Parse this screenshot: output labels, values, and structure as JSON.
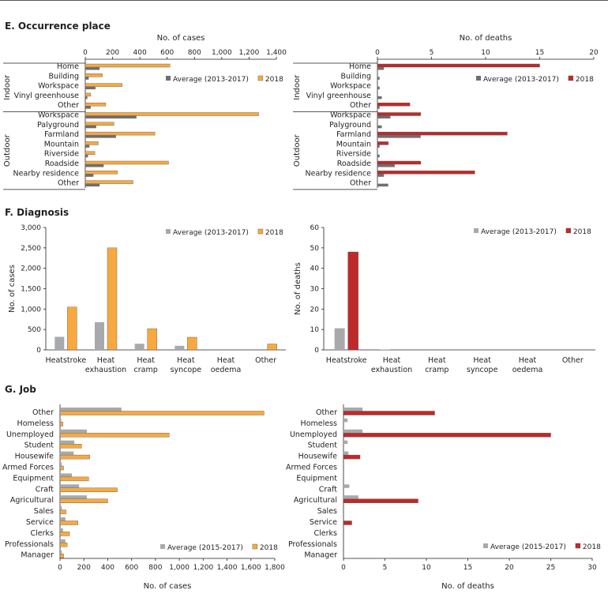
{
  "sections": {
    "occurrence": "E. Occurrence place",
    "diagnosis": "F. Diagnosis",
    "job": "G. Job"
  },
  "colors": {
    "avg_occ": "#6d6e70",
    "avg_light": "#a7a9ac",
    "cases2018": "#f7a940",
    "deaths2018": "#be2a2a",
    "bar_edge": "#555555"
  },
  "chart_data": [
    {
      "id": "occ_cases",
      "type": "bar",
      "orientation": "horizontal",
      "title": "No. of cases",
      "groups": [
        {
          "name": "Indoor",
          "categories": [
            "Home",
            "Building",
            "Workspace",
            "Vinyl greenhouse",
            "Other"
          ]
        },
        {
          "name": "Outdoor",
          "categories": [
            "Workspace",
            "Palyground",
            "Farmland",
            "Mountain",
            "Riverside",
            "Roadside",
            "Nearby residence",
            "Other"
          ]
        }
      ],
      "series": [
        {
          "name": "Average (2013-2017)",
          "values": [
            105,
            25,
            75,
            15,
            40,
            375,
            80,
            225,
            30,
            20,
            135,
            60,
            105
          ]
        },
        {
          "name": "2018",
          "values": [
            620,
            125,
            270,
            40,
            150,
            1270,
            210,
            510,
            95,
            70,
            610,
            235,
            350
          ]
        }
      ],
      "xlim": [
        0,
        1400
      ],
      "ticks": [
        "0",
        "200",
        "400",
        "600",
        "800",
        "1,000",
        "1,200",
        "1,400"
      ]
    },
    {
      "id": "occ_deaths",
      "type": "bar",
      "orientation": "horizontal",
      "title": "No. of deaths",
      "groups": [
        {
          "name": "Indoor",
          "categories": [
            "Home",
            "Building",
            "Workspace",
            "Vinyl greenhouse",
            "Other"
          ]
        },
        {
          "name": "Outdoor",
          "categories": [
            "Workspace",
            "Palyground",
            "Farmland",
            "Mountain",
            "Riverside",
            "Roadside",
            "Nearby residence",
            "Other"
          ]
        }
      ],
      "series": [
        {
          "name": "Average (2013-2017)",
          "values": [
            0.6,
            0.2,
            0.2,
            0.4,
            0.2,
            1.2,
            0.4,
            4,
            0.2,
            0.2,
            1.6,
            0.6,
            1
          ]
        },
        {
          "name": "2018",
          "values": [
            15,
            0,
            0,
            0,
            3,
            4,
            0,
            12,
            1,
            0,
            4,
            9,
            0
          ]
        }
      ],
      "xlim": [
        0,
        20
      ],
      "ticks": [
        "0",
        "5",
        "10",
        "15",
        "20"
      ]
    },
    {
      "id": "diag_cases",
      "type": "bar",
      "orientation": "vertical",
      "ylabel": "No. of   cases",
      "categories": [
        "Heatstroke",
        "Heat exhaustion",
        "Heat cramp",
        "Heat syncope",
        "Heat oedema",
        "Other"
      ],
      "series": [
        {
          "name": "Average (2013-2017)",
          "values": [
            320,
            680,
            150,
            100,
            0,
            20
          ]
        },
        {
          "name": "2018",
          "values": [
            1050,
            2500,
            520,
            310,
            0,
            145
          ]
        }
      ],
      "ylim": [
        0,
        3000
      ],
      "ticks": [
        "0",
        "500",
        "1,000",
        "1,500",
        "2,000",
        "2,500",
        "3,000"
      ]
    },
    {
      "id": "diag_deaths",
      "type": "bar",
      "orientation": "vertical",
      "ylabel": "No. of   deaths",
      "categories": [
        "Heatstroke",
        "Heat exhaustion",
        "Heat cramp",
        "Heat syncope",
        "Heat oedema",
        "Other"
      ],
      "series": [
        {
          "name": "Average (2013-2017)",
          "values": [
            10.6,
            0.2,
            0,
            0,
            0,
            0
          ]
        },
        {
          "name": "2018",
          "values": [
            48,
            0,
            0,
            0,
            0,
            0
          ]
        }
      ],
      "ylim": [
        0,
        60
      ],
      "ticks": [
        "0",
        "10",
        "20",
        "30",
        "40",
        "50",
        "60"
      ]
    },
    {
      "id": "job_cases",
      "type": "bar",
      "orientation": "horizontal",
      "xlabel": "No. of  cases",
      "categories": [
        "Other",
        "Homeless",
        "Unemployed",
        "Student",
        "Housewife",
        "Armed Forces",
        "Equipment",
        "Craft",
        "Agricultural",
        "Sales",
        "Service",
        "Clerks",
        "Professionals",
        "Manager"
      ],
      "series": [
        {
          "name": "Average (2015-2017)",
          "values": [
            515,
            10,
            225,
            120,
            115,
            15,
            100,
            160,
            225,
            15,
            45,
            25,
            45,
            15
          ]
        },
        {
          "name": "2018",
          "values": [
            1710,
            25,
            915,
            180,
            250,
            30,
            240,
            480,
            400,
            50,
            150,
            80,
            60,
            30
          ]
        }
      ],
      "xlim": [
        0,
        1800
      ],
      "ticks": [
        "0",
        "200",
        "400",
        "600",
        "800",
        "1,000",
        "1,200",
        "1,400",
        "1,600",
        "1,800"
      ]
    },
    {
      "id": "job_deaths",
      "type": "bar",
      "orientation": "horizontal",
      "xlabel": "No. of deaths",
      "categories": [
        "Other",
        "Homeless",
        "Unemployed",
        "Student",
        "Housewife",
        "Armed Forces",
        "Equipment",
        "Craft",
        "Agricultural",
        "Sales",
        "Service",
        "Clerks",
        "Professionals",
        "Manager"
      ],
      "series": [
        {
          "name": "Average (2015-2017)",
          "values": [
            2.3,
            0.5,
            2.3,
            0.5,
            0.6,
            0,
            0,
            0.7,
            1.8,
            0,
            0,
            0,
            0,
            0
          ]
        },
        {
          "name": "2018",
          "values": [
            11,
            0,
            25,
            0,
            2,
            0,
            0,
            0,
            9,
            0,
            1,
            0,
            0,
            0
          ]
        }
      ],
      "xlim": [
        0,
        30
      ],
      "ticks": [
        "0",
        "5",
        "10",
        "15",
        "20",
        "25",
        "30"
      ]
    }
  ]
}
